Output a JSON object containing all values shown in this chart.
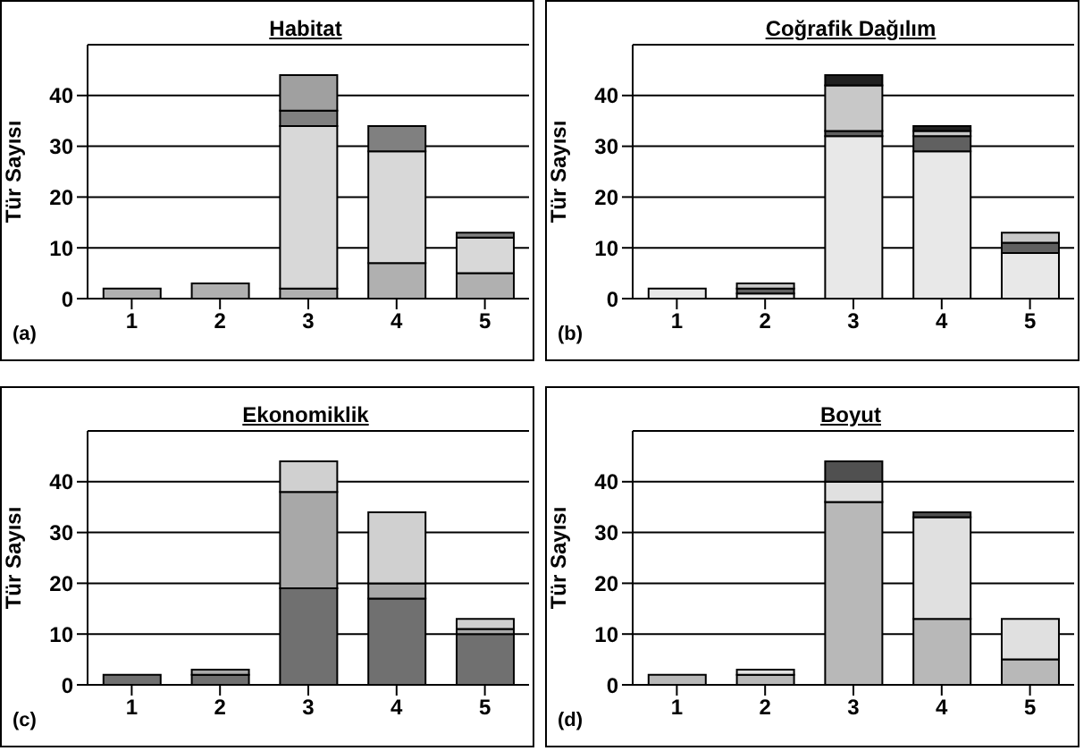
{
  "chart_data": [
    {
      "type": "bar",
      "title": "Habitat",
      "ylabel": "Tür Sayısı",
      "categories": [
        "1",
        "2",
        "3",
        "4",
        "5"
      ],
      "stacked": true,
      "ylim": [
        0,
        50
      ],
      "yticks": [
        0,
        10,
        20,
        30,
        40
      ],
      "grid": "y",
      "annotations": [
        "(a)"
      ],
      "series": [
        {
          "color": "#b0b0b0",
          "values": [
            2,
            3,
            2,
            7,
            5
          ]
        },
        {
          "color": "#d8d8d8",
          "values": [
            null,
            null,
            32,
            22,
            7
          ]
        },
        {
          "color": "#808080",
          "values": [
            null,
            null,
            3,
            5,
            1
          ]
        },
        {
          "color": "#a0a0a0",
          "values": [
            null,
            null,
            7,
            null,
            null
          ]
        }
      ]
    },
    {
      "type": "bar",
      "title": "Coğrafik Dağılım",
      "ylabel": "Tür Sayısı",
      "categories": [
        "1",
        "2",
        "3",
        "4",
        "5"
      ],
      "stacked": true,
      "ylim": [
        0,
        50
      ],
      "yticks": [
        0,
        10,
        20,
        30,
        40
      ],
      "grid": "y",
      "annotations": [
        "(b)"
      ],
      "series": [
        {
          "color": "#e8e8e8",
          "values": [
            2,
            1,
            32,
            29,
            9
          ]
        },
        {
          "color": "#606060",
          "values": [
            null,
            1,
            1,
            3,
            2
          ]
        },
        {
          "color": "#c8c8c8",
          "values": [
            null,
            1,
            9,
            1,
            2
          ]
        },
        {
          "color": "#202020",
          "values": [
            null,
            null,
            2,
            1,
            null
          ]
        }
      ]
    },
    {
      "type": "bar",
      "title": "Ekonomiklik",
      "ylabel": "Tür Sayısı",
      "categories": [
        "1",
        "2",
        "3",
        "4",
        "5"
      ],
      "stacked": true,
      "ylim": [
        0,
        50
      ],
      "yticks": [
        0,
        10,
        20,
        30,
        40
      ],
      "grid": "y",
      "annotations": [
        "(c)"
      ],
      "series": [
        {
          "color": "#707070",
          "values": [
            2,
            2,
            19,
            17,
            10
          ]
        },
        {
          "color": "#a8a8a8",
          "values": [
            null,
            1,
            19,
            3,
            1
          ]
        },
        {
          "color": "#d0d0d0",
          "values": [
            null,
            null,
            6,
            14,
            2
          ]
        }
      ]
    },
    {
      "type": "bar",
      "title": "Boyut",
      "ylabel": "Tür Sayısı",
      "categories": [
        "1",
        "2",
        "3",
        "4",
        "5"
      ],
      "stacked": true,
      "ylim": [
        0,
        50
      ],
      "yticks": [
        0,
        10,
        20,
        30,
        40
      ],
      "grid": "y",
      "annotations": [
        "(d)"
      ],
      "series": [
        {
          "color": "#b8b8b8",
          "values": [
            2,
            2,
            36,
            13,
            5
          ]
        },
        {
          "color": "#e0e0e0",
          "values": [
            null,
            1,
            4,
            20,
            8
          ]
        },
        {
          "color": "#505050",
          "values": [
            null,
            null,
            4,
            1,
            null
          ]
        }
      ]
    }
  ]
}
